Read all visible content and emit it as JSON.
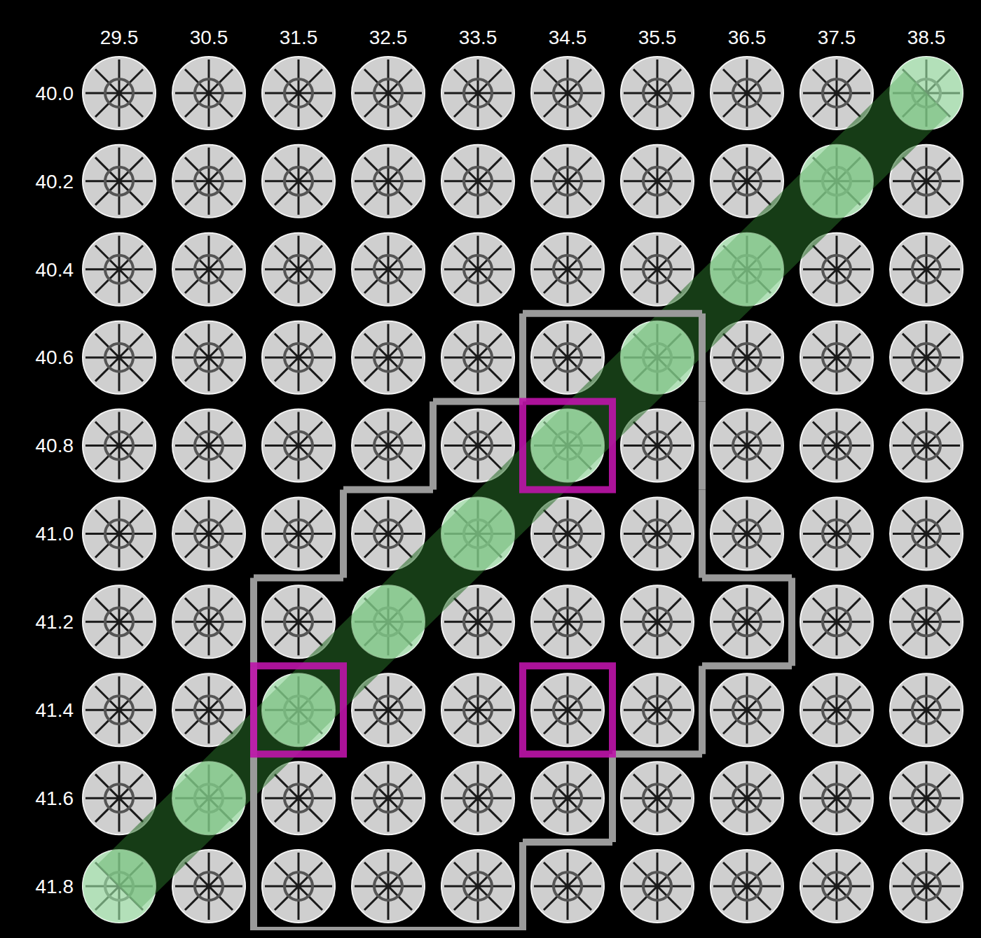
{
  "chart_data": {
    "type": "grid",
    "x": [
      29.5,
      30.5,
      31.5,
      32.5,
      33.5,
      34.5,
      35.5,
      36.5,
      37.5,
      38.5
    ],
    "y": [
      40.0,
      40.2,
      40.4,
      40.6,
      40.8,
      41.0,
      41.2,
      41.4,
      41.6,
      41.8
    ],
    "xlim": [
      29.0,
      39.0
    ],
    "xticks": [
      29.5,
      30.5,
      31.5,
      32.5,
      33.5,
      34.5,
      35.5,
      36.5,
      37.5,
      38.5
    ],
    "ylim": [
      41.9,
      39.9
    ],
    "yticks": [
      {
        "value": 40.0,
        "label": "40.0"
      },
      40.2,
      40.4,
      40.6,
      40.8,
      {
        "value": 41.0,
        "label": "41.0"
      },
      41.2,
      41.4,
      41.6,
      41.8
    ],
    "highlighted": [
      [
        38.5,
        40.0
      ],
      [
        37.5,
        40.2
      ],
      [
        36.5,
        40.4
      ],
      [
        35.5,
        40.6
      ],
      [
        34.5,
        40.8
      ],
      [
        33.5,
        41.0
      ],
      [
        32.5,
        41.2
      ],
      [
        31.5,
        41.4
      ],
      [
        30.5,
        41.6
      ],
      [
        29.5,
        41.8
      ]
    ],
    "outlined": [
      [
        34.5,
        40.6
      ],
      [
        35.5,
        40.6
      ],
      [
        33.5,
        40.8
      ],
      [
        34.5,
        40.8
      ],
      [
        35.5,
        40.8
      ],
      [
        32.5,
        41.0
      ],
      [
        33.5,
        41.0
      ],
      [
        34.5,
        41.0
      ],
      [
        35.5,
        41.0
      ],
      [
        31.5,
        41.2
      ],
      [
        32.5,
        41.2
      ],
      [
        33.5,
        41.2
      ],
      [
        34.5,
        41.2
      ],
      [
        35.5,
        41.2
      ],
      [
        36.5,
        41.2
      ],
      [
        31.5,
        41.4
      ],
      [
        32.5,
        41.4
      ],
      [
        33.5,
        41.4
      ],
      [
        34.5,
        41.4
      ],
      [
        35.5,
        41.4
      ],
      [
        31.5,
        41.6
      ],
      [
        32.5,
        41.6
      ],
      [
        33.5,
        41.6
      ],
      [
        34.5,
        41.6
      ],
      [
        31.5,
        41.8
      ],
      [
        32.5,
        41.8
      ],
      [
        33.5,
        41.8
      ]
    ],
    "boxed": [
      [
        34.5,
        40.8
      ],
      [
        31.5,
        41.4
      ],
      [
        34.5,
        41.4
      ]
    ],
    "grid": false
  }
}
